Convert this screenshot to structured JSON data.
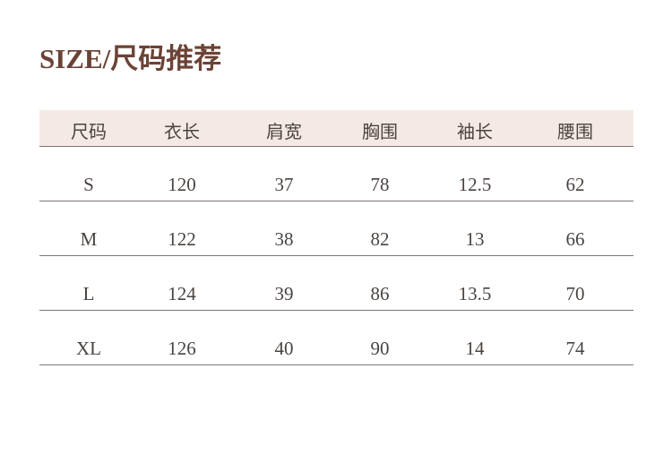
{
  "title": "SIZE/尺码推荐",
  "table": {
    "headers": [
      "尺码",
      "衣长",
      "肩宽",
      "胸围",
      "袖长",
      "腰围"
    ],
    "rows": [
      [
        "S",
        "120",
        "37",
        "78",
        "12.5",
        "62"
      ],
      [
        "M",
        "122",
        "38",
        "82",
        "13",
        "66"
      ],
      [
        "L",
        "124",
        "39",
        "86",
        "13.5",
        "70"
      ],
      [
        "XL",
        "126",
        "40",
        "90",
        "14",
        "74"
      ]
    ]
  },
  "colors": {
    "title": "#6b4336",
    "header_bg": "#f5e9e5",
    "text": "#4a4440",
    "rule": "#7d7674"
  }
}
